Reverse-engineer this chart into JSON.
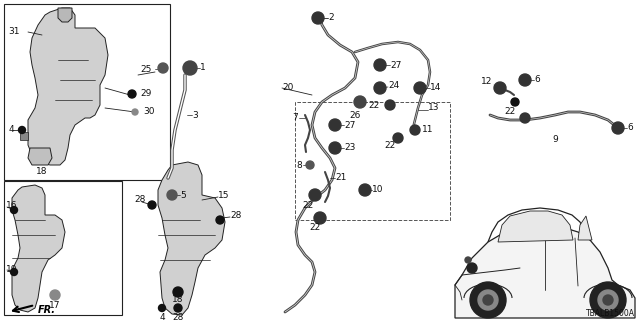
{
  "bg_color": "#ffffff",
  "diagram_code": "TBALB1500A",
  "text_color": "#111111",
  "line_color": "#222222",
  "fig_w": 6.4,
  "fig_h": 3.2,
  "dpi": 100
}
